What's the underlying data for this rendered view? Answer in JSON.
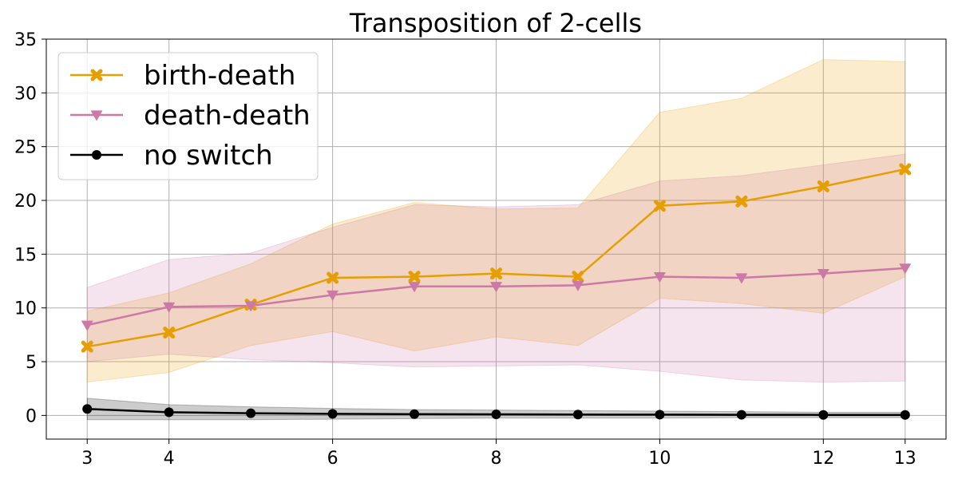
{
  "chart_data": {
    "type": "line",
    "title": "Transposition of 2-cells",
    "xlabel": "",
    "ylabel": "",
    "x": [
      3,
      4,
      5,
      6,
      7,
      8,
      9,
      10,
      11,
      12,
      13
    ],
    "xticks": [
      3,
      4,
      6,
      8,
      10,
      12,
      13
    ],
    "yticks": [
      0,
      5,
      10,
      15,
      20,
      25,
      30,
      35
    ],
    "xlim": [
      2.5,
      13.5
    ],
    "ylim": [
      -2.2,
      35
    ],
    "grid": true,
    "legend_position": "top-left",
    "series": [
      {
        "name": "birth-death",
        "color": "#e69f00",
        "marker": "x-filled",
        "values": [
          6.4,
          7.7,
          10.3,
          12.8,
          12.9,
          13.2,
          12.9,
          19.5,
          19.9,
          21.3,
          22.9
        ],
        "lower": [
          3.1,
          4.0,
          6.5,
          7.8,
          6.0,
          7.3,
          6.5,
          10.9,
          10.4,
          9.5,
          12.9
        ],
        "upper": [
          9.7,
          11.4,
          14.1,
          17.8,
          19.8,
          19.2,
          19.3,
          28.2,
          29.5,
          33.1,
          32.9
        ]
      },
      {
        "name": "death-death",
        "color": "#cc79a7",
        "marker": "triangle-down",
        "values": [
          8.4,
          10.1,
          10.2,
          11.2,
          12.0,
          12.0,
          12.1,
          12.9,
          12.8,
          13.2,
          13.7
        ],
        "lower": [
          5.0,
          5.7,
          5.2,
          4.9,
          4.5,
          4.6,
          4.7,
          4.1,
          3.3,
          3.1,
          3.2
        ],
        "upper": [
          11.9,
          14.5,
          15.1,
          17.5,
          19.6,
          19.4,
          19.6,
          21.8,
          22.3,
          23.3,
          24.3
        ]
      },
      {
        "name": "no switch",
        "color": "#000000",
        "marker": "circle",
        "values": [
          0.6,
          0.3,
          0.2,
          0.15,
          0.12,
          0.1,
          0.08,
          0.07,
          0.06,
          0.05,
          0.05
        ],
        "lower": [
          -0.4,
          -0.4,
          -0.4,
          -0.35,
          -0.3,
          -0.25,
          -0.25,
          -0.25,
          -0.2,
          -0.2,
          -0.2
        ],
        "upper": [
          1.6,
          1.0,
          0.8,
          0.65,
          0.55,
          0.5,
          0.45,
          0.4,
          0.35,
          0.3,
          0.3
        ]
      }
    ]
  }
}
